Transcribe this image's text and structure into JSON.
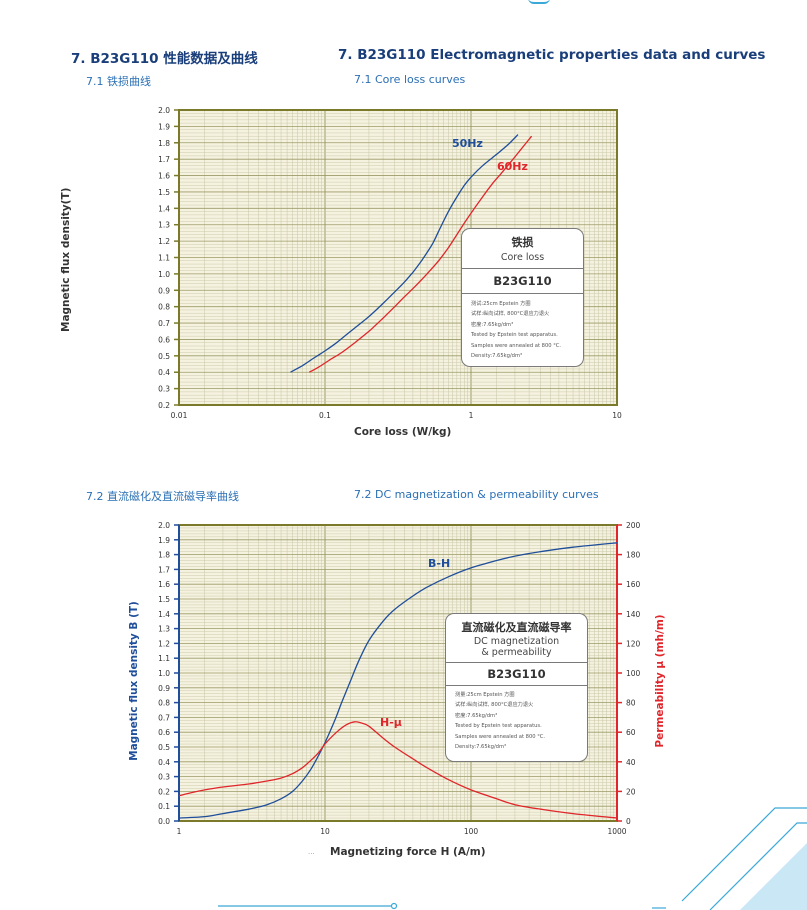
{
  "section": {
    "title_cn": "7. B23G110 性能数据及曲线",
    "title_en": "7. B23G110  Electromagnetic properties data and curves"
  },
  "core_loss": {
    "subtitle_cn": "7.1 铁损曲线",
    "subtitle_en": "7.1 Core loss curves",
    "infobox": {
      "title_cn": "铁损",
      "title_en": "Core loss",
      "grade": "B23G110",
      "notes": [
        "测试:25cm Epstein 方圈",
        "试样:纵向试样, 800°C退应力退火",
        "密度:7.65kg/dm³",
        "Tested by Epstein test apparatus.",
        "Samples were annealed at 800 °C.",
        "Density:7.65kg/dm³"
      ]
    }
  },
  "dc": {
    "subtitle_cn": "7.2 直流磁化及直流磁导率曲线",
    "subtitle_en": "7.2 DC magnetization & permeability curves",
    "infobox": {
      "title_cn": "直流磁化及直流磁导率",
      "title_en_1": "DC magnetization",
      "title_en_2": "& permeability",
      "grade": "B23G110",
      "notes": [
        "测量:25cm Epstein 方圈",
        "试样:纵向试样, 800°C退应力退火",
        "密度:7.65kg/dm³",
        "Tested by Epstein test apparatus.",
        "Samples were annealed at 800 °C.",
        "Density:7.65kg/dm³"
      ]
    }
  },
  "colors": {
    "blue_curve": "#1f4e9a",
    "red_curve": "#e0262b",
    "plot_bg": "#f5f2e0",
    "plot_border": "#7a7a2a",
    "grid_major": "#9a9a66",
    "grid_minor": "#c8c6a6",
    "title_navy": "#1a3e7a",
    "subtitle_blue": "#2a6fb5",
    "decor_cyan": "#3aa8d8"
  },
  "chart_data": [
    {
      "type": "line",
      "title": "",
      "xlabel": "Core loss (W/kg)",
      "ylabel": "Magnetic flux density(T)",
      "xscale": "log",
      "xlim": [
        0.01,
        10
      ],
      "ylim": [
        0.2,
        2.0
      ],
      "xticks": [
        "0.01",
        "0.1",
        "1",
        "10"
      ],
      "yticks": [
        "0.2",
        "0.3",
        "0.4",
        "0.5",
        "0.6",
        "0.7",
        "0.8",
        "0.9",
        "1.0",
        "1.1",
        "1.2",
        "1.3",
        "1.4",
        "1.5",
        "1.6",
        "1.7",
        "1.8",
        "1.9",
        "2.0"
      ],
      "grid": true,
      "legend": "inline labels on curves",
      "series": [
        {
          "name": "50Hz",
          "color": "#1f4e9a",
          "points": [
            [
              0.058,
              0.4
            ],
            [
              0.07,
              0.44
            ],
            [
              0.085,
              0.49
            ],
            [
              0.1,
              0.53
            ],
            [
              0.12,
              0.58
            ],
            [
              0.15,
              0.65
            ],
            [
              0.2,
              0.74
            ],
            [
              0.25,
              0.82
            ],
            [
              0.3,
              0.89
            ],
            [
              0.35,
              0.95
            ],
            [
              0.4,
              1.01
            ],
            [
              0.45,
              1.07
            ],
            [
              0.5,
              1.13
            ],
            [
              0.55,
              1.19
            ],
            [
              0.6,
              1.26
            ],
            [
              0.7,
              1.38
            ],
            [
              0.8,
              1.47
            ],
            [
              0.9,
              1.54
            ],
            [
              1.0,
              1.59
            ],
            [
              1.2,
              1.66
            ],
            [
              1.5,
              1.73
            ],
            [
              1.8,
              1.79
            ],
            [
              2.1,
              1.85
            ]
          ]
        },
        {
          "name": "60Hz",
          "color": "#e0262b",
          "points": [
            [
              0.078,
              0.4
            ],
            [
              0.09,
              0.43
            ],
            [
              0.11,
              0.48
            ],
            [
              0.13,
              0.52
            ],
            [
              0.16,
              0.58
            ],
            [
              0.2,
              0.65
            ],
            [
              0.25,
              0.73
            ],
            [
              0.3,
              0.8
            ],
            [
              0.35,
              0.86
            ],
            [
              0.4,
              0.91
            ],
            [
              0.5,
              1.0
            ],
            [
              0.6,
              1.08
            ],
            [
              0.7,
              1.16
            ],
            [
              0.8,
              1.24
            ],
            [
              0.9,
              1.31
            ],
            [
              1.0,
              1.37
            ],
            [
              1.2,
              1.47
            ],
            [
              1.4,
              1.55
            ],
            [
              1.6,
              1.61
            ],
            [
              1.9,
              1.69
            ],
            [
              2.2,
              1.76
            ],
            [
              2.6,
              1.84
            ]
          ]
        }
      ]
    },
    {
      "type": "line",
      "title": "",
      "xlabel": "Magnetizing force H (A/m)",
      "ylabel": "Magnetic flux density B (T)",
      "y2label": "Permeability μ (mh/m)",
      "xscale": "log",
      "xlim": [
        1,
        1000
      ],
      "ylim": [
        0.0,
        2.0
      ],
      "y2lim": [
        0,
        200
      ],
      "xticks": [
        "1",
        "10",
        "100",
        "1000"
      ],
      "yticks": [
        "0.0",
        "0.1",
        "0.2",
        "0.3",
        "0.4",
        "0.5",
        "0.6",
        "0.7",
        "0.8",
        "0.9",
        "1.0",
        "1.1",
        "1.2",
        "1.3",
        "1.4",
        "1.5",
        "1.6",
        "1.7",
        "1.8",
        "1.9",
        "2.0"
      ],
      "y2ticks": [
        "0",
        "20",
        "40",
        "60",
        "80",
        "100",
        "120",
        "140",
        "160",
        "180",
        "200"
      ],
      "grid": true,
      "legend": "inline labels on curves",
      "series": [
        {
          "name": "B-H",
          "axis": "left",
          "color": "#1f4e9a",
          "points": [
            [
              1,
              0.02
            ],
            [
              1.5,
              0.03
            ],
            [
              2,
              0.05
            ],
            [
              3,
              0.08
            ],
            [
              4,
              0.11
            ],
            [
              5,
              0.15
            ],
            [
              6,
              0.2
            ],
            [
              7,
              0.27
            ],
            [
              8,
              0.35
            ],
            [
              9,
              0.44
            ],
            [
              10,
              0.53
            ],
            [
              11,
              0.62
            ],
            [
              12,
              0.71
            ],
            [
              13,
              0.8
            ],
            [
              15,
              0.95
            ],
            [
              17,
              1.08
            ],
            [
              20,
              1.22
            ],
            [
              25,
              1.35
            ],
            [
              30,
              1.43
            ],
            [
              40,
              1.52
            ],
            [
              50,
              1.58
            ],
            [
              70,
              1.65
            ],
            [
              100,
              1.71
            ],
            [
              150,
              1.76
            ],
            [
              200,
              1.79
            ],
            [
              300,
              1.82
            ],
            [
              500,
              1.85
            ],
            [
              1000,
              1.88
            ]
          ]
        },
        {
          "name": "H-μ",
          "axis": "right",
          "color": "#e0262b",
          "points": [
            [
              1,
              17
            ],
            [
              1.2,
              19
            ],
            [
              1.5,
              21
            ],
            [
              2,
              23
            ],
            [
              3,
              25
            ],
            [
              4,
              27
            ],
            [
              5,
              29
            ],
            [
              6,
              32
            ],
            [
              7,
              36
            ],
            [
              8,
              41
            ],
            [
              9,
              46
            ],
            [
              10,
              52
            ],
            [
              12,
              60
            ],
            [
              14,
              65
            ],
            [
              16,
              67
            ],
            [
              18,
              66
            ],
            [
              20,
              64
            ],
            [
              25,
              56
            ],
            [
              30,
              50
            ],
            [
              40,
              42
            ],
            [
              50,
              36
            ],
            [
              70,
              28
            ],
            [
              100,
              21
            ],
            [
              150,
              15
            ],
            [
              200,
              11
            ],
            [
              300,
              8
            ],
            [
              500,
              5
            ],
            [
              1000,
              2
            ]
          ]
        }
      ]
    }
  ]
}
